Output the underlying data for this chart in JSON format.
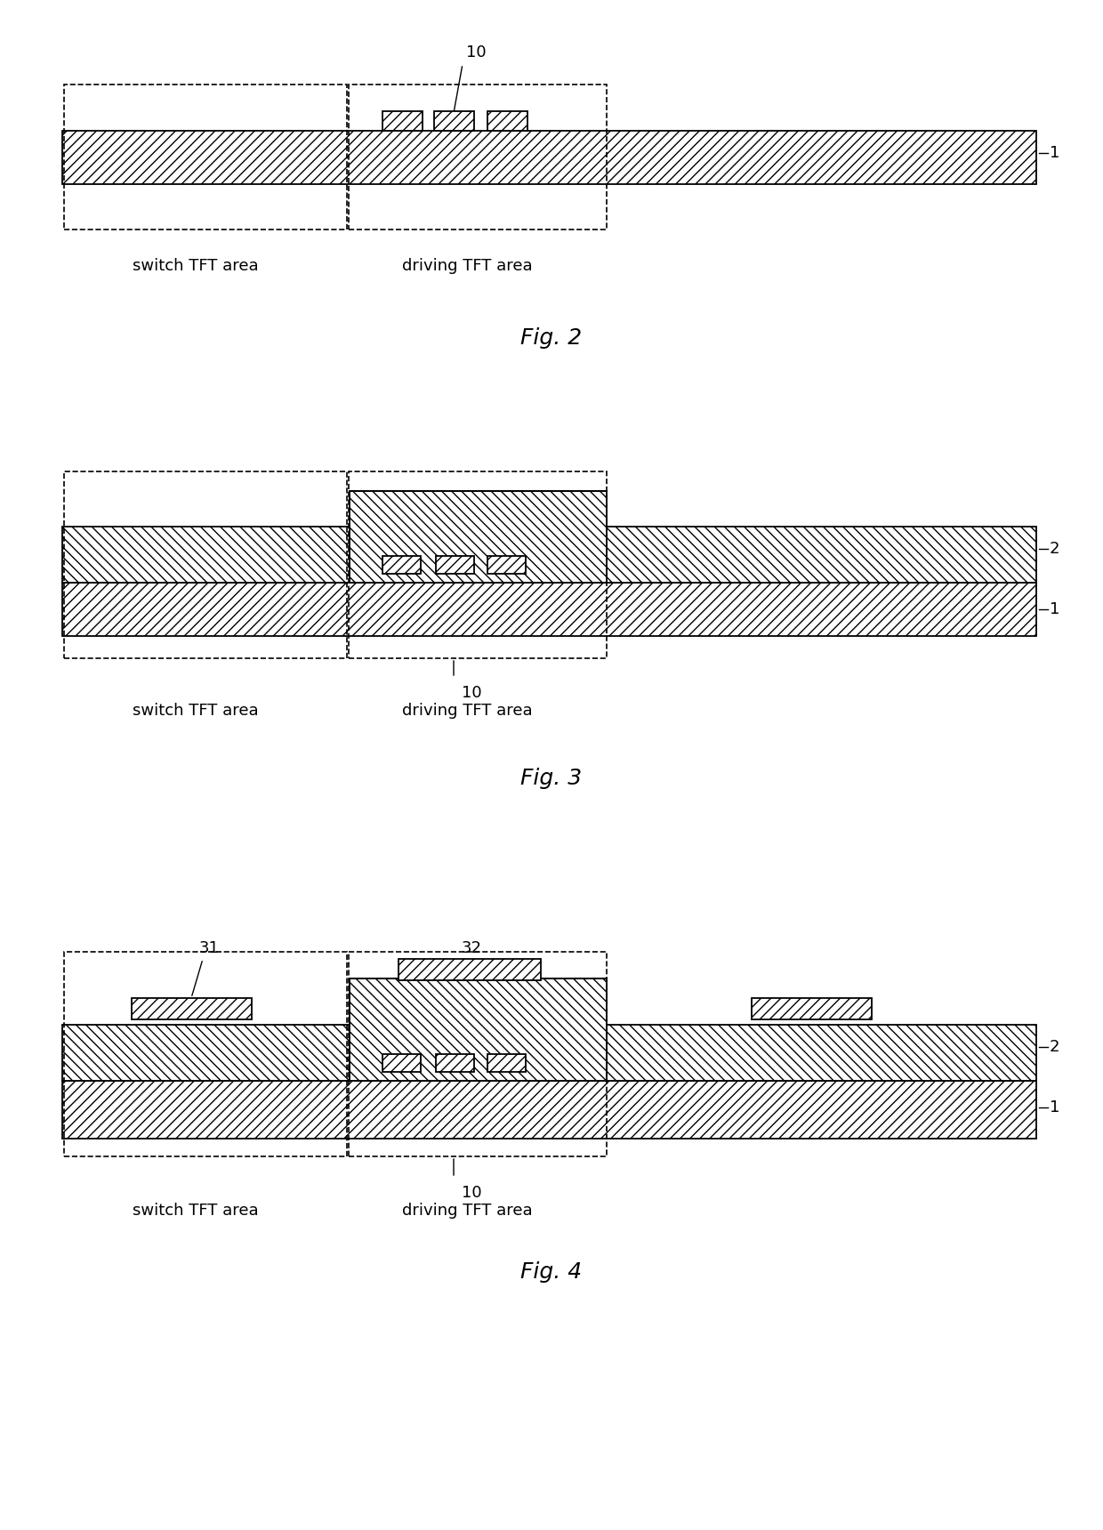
{
  "fig2": {
    "title": "Fig. 2",
    "substrate_label": "1",
    "bump_label": "10",
    "switch_label": "switch TFT area",
    "driving_label": "driving TFT area"
  },
  "fig3": {
    "title": "Fig. 3",
    "substrate_label": "1",
    "layer2_label": "2",
    "bump_label": "10",
    "switch_label": "switch TFT area",
    "driving_label": "driving TFT area"
  },
  "fig4": {
    "title": "Fig. 4",
    "substrate_label": "1",
    "layer2_label": "2",
    "bump_label": "10",
    "label31": "31",
    "label32": "32",
    "switch_label": "switch TFT area",
    "driving_label": "driving TFT area"
  },
  "line_color": "#000000",
  "bg_color": "#ffffff"
}
